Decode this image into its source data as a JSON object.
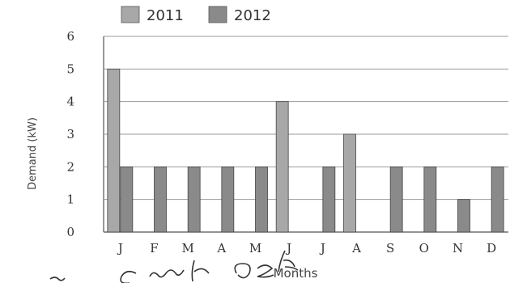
{
  "chart_data": {
    "type": "bar",
    "categories": [
      "J",
      "F",
      "M",
      "A",
      "M",
      "J",
      "J",
      "A",
      "S",
      "O",
      "N",
      "D"
    ],
    "series": [
      {
        "name": "2011",
        "values": [
          5,
          0,
          0,
          0,
          0,
          4,
          0,
          3,
          0,
          0,
          0,
          0
        ],
        "color": "#a8a8a8"
      },
      {
        "name": "2012",
        "values": [
          2,
          2,
          2,
          2,
          2,
          0,
          2,
          0,
          2,
          2,
          1,
          2
        ],
        "color": "#8a8a8a"
      }
    ],
    "ylabel": "Demand (kW)",
    "xlabel": "Months",
    "ylim": [
      0,
      6
    ],
    "yticks": [
      "0",
      "1",
      "2",
      "3",
      "4",
      "5",
      "6"
    ],
    "grid": true,
    "legend_position": "top"
  }
}
